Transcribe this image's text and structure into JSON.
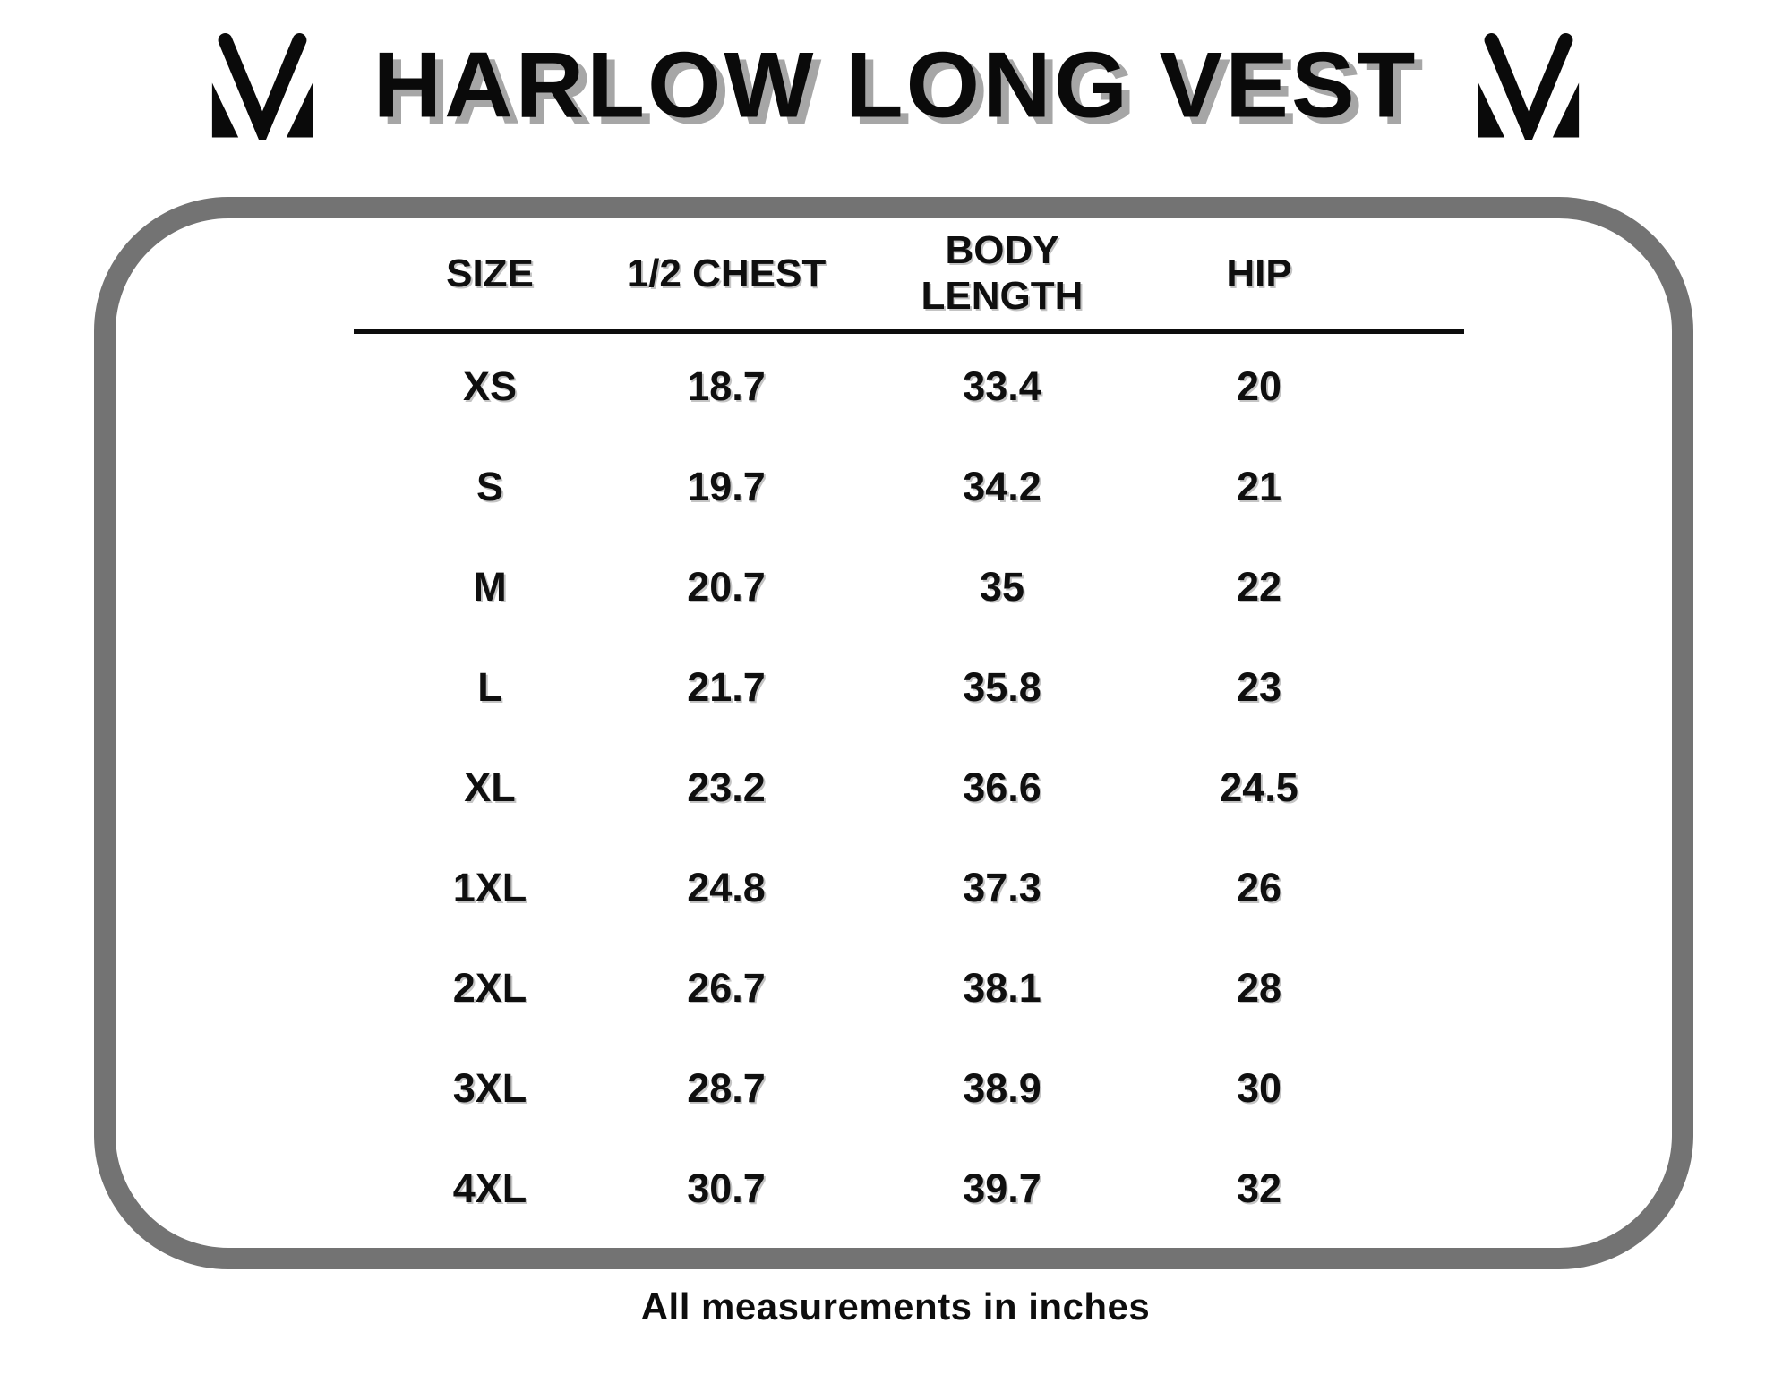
{
  "header": {
    "title": "HARLOW LONG VEST",
    "left_logo": "brand-m-monogram",
    "right_logo": "brand-m-monogram"
  },
  "footer": {
    "note": "All measurements in inches"
  },
  "colors": {
    "box_border": "#737373",
    "text": "#0d0d0d",
    "title_shadow": "#a6a6a6",
    "background": "#ffffff"
  },
  "chart_data": {
    "type": "table",
    "title": "HARLOW LONG VEST",
    "columns": [
      "SIZE",
      "1/2 CHEST",
      "BODY LENGTH",
      "HIP"
    ],
    "rows": [
      {
        "size": "XS",
        "half_chest": "18.7",
        "body_length": "33.4",
        "hip": "20"
      },
      {
        "size": "S",
        "half_chest": "19.7",
        "body_length": "34.2",
        "hip": "21"
      },
      {
        "size": "M",
        "half_chest": "20.7",
        "body_length": "35",
        "hip": "22"
      },
      {
        "size": "L",
        "half_chest": "21.7",
        "body_length": "35.8",
        "hip": "23"
      },
      {
        "size": "XL",
        "half_chest": "23.2",
        "body_length": "36.6",
        "hip": "24.5"
      },
      {
        "size": "1XL",
        "half_chest": "24.8",
        "body_length": "37.3",
        "hip": "26"
      },
      {
        "size": "2XL",
        "half_chest": "26.7",
        "body_length": "38.1",
        "hip": "28"
      },
      {
        "size": "3XL",
        "half_chest": "28.7",
        "body_length": "38.9",
        "hip": "30"
      },
      {
        "size": "4XL",
        "half_chest": "30.7",
        "body_length": "39.7",
        "hip": "32"
      }
    ],
    "note": "All measurements in inches",
    "units": "inches"
  }
}
